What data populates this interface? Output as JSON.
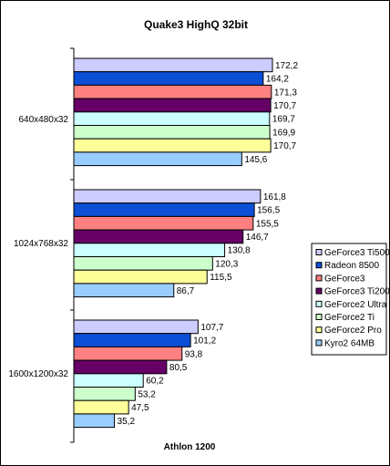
{
  "chart_data": {
    "type": "bar",
    "orientation": "horizontal",
    "title": "Quake3 HighQ 32bit",
    "xlabel": "Athlon 1200",
    "ylabel": "",
    "categories": [
      "640x480x32",
      "1024x768x32",
      "1600x1200x32"
    ],
    "xlim": [
      0,
      180
    ],
    "grid": false,
    "legend_position": "right",
    "series": [
      {
        "name": "GeForce3 Ti500",
        "color": "#ccccff",
        "values": [
          172.2,
          161.8,
          107.7
        ],
        "labels": [
          "172,2",
          "161,8",
          "107,7"
        ]
      },
      {
        "name": "Radeon 8500",
        "color": "#0a4fd6",
        "values": [
          164.2,
          156.5,
          101.2
        ],
        "labels": [
          "164,2",
          "156,5",
          "101,2"
        ]
      },
      {
        "name": "GeForce3",
        "color": "#ff8080",
        "values": [
          171.3,
          155.5,
          93.8
        ],
        "labels": [
          "171,3",
          "155,5",
          "93,8"
        ]
      },
      {
        "name": "GeForce3 Ti200",
        "color": "#660066",
        "values": [
          170.7,
          146.7,
          80.5
        ],
        "labels": [
          "170,7",
          "146,7",
          "80,5"
        ]
      },
      {
        "name": "GeForce2 Ultra",
        "color": "#ccffff",
        "values": [
          169.7,
          130.8,
          60.2
        ],
        "labels": [
          "169,7",
          "130,8",
          "60,2"
        ]
      },
      {
        "name": "GeForce2 Ti",
        "color": "#ccffcc",
        "values": [
          169.9,
          120.3,
          53.2
        ],
        "labels": [
          "169,9",
          "120,3",
          "53,2"
        ]
      },
      {
        "name": "GeForce2 Pro",
        "color": "#ffff99",
        "values": [
          170.7,
          115.5,
          47.5
        ],
        "labels": [
          "170,7",
          "115,5",
          "47,5"
        ]
      },
      {
        "name": "Kyro2 64MB",
        "color": "#99ccff",
        "values": [
          145.6,
          86.7,
          35.2
        ],
        "labels": [
          "145,6",
          "86,7",
          "35,2"
        ]
      }
    ]
  }
}
